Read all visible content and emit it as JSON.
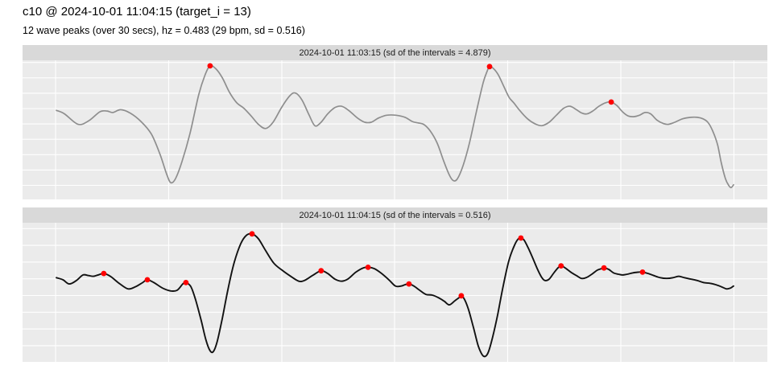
{
  "header": {
    "title": "c10 @ 2024-10-01 11:04:15 (target_i = 13)",
    "subtitle": "12 wave peaks (over 30 secs), hz = 0.483 (29 bpm, sd = 0.516)"
  },
  "colors": {
    "strip_background": "#d9d9d9",
    "panel_background": "#ebebeb",
    "gridline": "#ffffff",
    "peak_marker": "#ff0000",
    "title_text": "#000000",
    "strip_text": "#1a1a1a"
  },
  "chart_data": [
    {
      "type": "line",
      "facet_label": "2024-10-01 11:03:15 (sd of the intervals = 4.879)",
      "line_color": "#8e8e8e",
      "x_range_sec": [
        0,
        30
      ],
      "y_units": "arbitrary amplitude (no axis ticks or labels shown)",
      "grid": true,
      "legend": "none",
      "series": [
        {
          "name": "wave 11:03:15",
          "t_sec": [
            0,
            0.36,
            0.96,
            1.43,
            1.93,
            2.25,
            2.5,
            2.85,
            3.28,
            3.75,
            4.21,
            4.6,
            4.89,
            5.07,
            5.28,
            5.56,
            5.92,
            6.31,
            6.6,
            6.81,
            7.06,
            7.35,
            7.67,
            7.99,
            8.31,
            8.63,
            8.95,
            9.27,
            9.6,
            9.99,
            10.34,
            10.59,
            10.88,
            11.2,
            11.45,
            11.7,
            12.02,
            12.34,
            12.63,
            12.95,
            13.34,
            13.66,
            13.95,
            14.27,
            14.63,
            15.05,
            15.45,
            15.77,
            16.02,
            16.27,
            16.55,
            16.87,
            17.16,
            17.41,
            17.59,
            17.77,
            18.02,
            18.3,
            18.62,
            18.91,
            19.08,
            19.19,
            19.37,
            19.58,
            19.83,
            20.05,
            20.26,
            20.55,
            20.87,
            21.19,
            21.51,
            21.83,
            22.15,
            22.47,
            22.76,
            23.04,
            23.29,
            23.51,
            23.76,
            24.04,
            24.33,
            24.58,
            24.83,
            25.08,
            25.33,
            25.58,
            25.83,
            26.08,
            26.33,
            26.61,
            26.9,
            27.11,
            27.4,
            27.75,
            28.11,
            28.39,
            28.64,
            28.86,
            29.07,
            29.29,
            29.46,
            29.64,
            29.79,
            29.89,
            30
          ],
          "y": [
            0.28,
            0.23,
            0.08,
            0.13,
            0.26,
            0.27,
            0.25,
            0.29,
            0.24,
            0.12,
            -0.06,
            -0.36,
            -0.64,
            -0.76,
            -0.7,
            -0.46,
            -0.05,
            0.51,
            0.8,
            0.92,
            0.88,
            0.75,
            0.54,
            0.39,
            0.31,
            0.2,
            0.08,
            0.02,
            0.11,
            0.33,
            0.49,
            0.53,
            0.43,
            0.21,
            0.06,
            0.1,
            0.23,
            0.32,
            0.34,
            0.28,
            0.17,
            0.11,
            0.11,
            0.17,
            0.21,
            0.21,
            0.18,
            0.12,
            0.1,
            0.08,
            -0.01,
            -0.19,
            -0.45,
            -0.65,
            -0.73,
            -0.7,
            -0.51,
            -0.19,
            0.28,
            0.68,
            0.84,
            0.91,
            0.88,
            0.79,
            0.62,
            0.47,
            0.39,
            0.27,
            0.16,
            0.09,
            0.06,
            0.11,
            0.21,
            0.31,
            0.34,
            0.29,
            0.24,
            0.23,
            0.27,
            0.34,
            0.39,
            0.4,
            0.35,
            0.26,
            0.2,
            0.19,
            0.21,
            0.25,
            0.23,
            0.14,
            0.09,
            0.08,
            0.11,
            0.16,
            0.18,
            0.18,
            0.16,
            0.11,
            -0.01,
            -0.21,
            -0.48,
            -0.7,
            -0.8,
            -0.83,
            -0.79
          ]
        }
      ],
      "peaks": {
        "marker": "red dot",
        "t_sec": [
          6.81,
          19.19,
          24.58
        ],
        "y": [
          0.92,
          0.91,
          0.4
        ]
      }
    },
    {
      "type": "line",
      "facet_label": "2024-10-01 11:04:15 (sd of the intervals = 0.516)",
      "line_color": "#121212",
      "x_range_sec": [
        0,
        30
      ],
      "y_units": "arbitrary amplitude (no axis ticks or labels shown)",
      "grid": true,
      "legend": "none",
      "series": [
        {
          "name": "wave 11:04:15",
          "t_sec": [
            0,
            0.29,
            0.57,
            0.89,
            1.18,
            1.43,
            1.64,
            1.85,
            2.1,
            2.39,
            2.78,
            3.17,
            3.5,
            3.82,
            4.03,
            4.32,
            4.71,
            5.07,
            5.35,
            5.6,
            5.74,
            5.96,
            6.17,
            6.42,
            6.63,
            6.81,
            6.96,
            7.13,
            7.35,
            7.6,
            7.88,
            8.17,
            8.42,
            8.67,
            8.95,
            9.27,
            9.63,
            9.99,
            10.38,
            10.74,
            10.99,
            11.34,
            11.73,
            12.02,
            12.34,
            12.63,
            12.91,
            13.27,
            13.59,
            13.81,
            14.09,
            14.41,
            14.73,
            15.02,
            15.27,
            15.45,
            15.62,
            15.84,
            16.09,
            16.37,
            16.66,
            16.94,
            17.19,
            17.41,
            17.66,
            17.83,
            17.94,
            18.08,
            18.26,
            18.48,
            18.69,
            18.87,
            19.01,
            19.15,
            19.33,
            19.55,
            19.8,
            20.05,
            20.3,
            20.47,
            20.58,
            20.72,
            20.9,
            21.12,
            21.33,
            21.51,
            21.65,
            21.83,
            22.04,
            22.22,
            22.36,
            22.54,
            22.79,
            23.04,
            23.26,
            23.47,
            23.72,
            23.97,
            24.15,
            24.26,
            24.47,
            24.68,
            24.9,
            25.08,
            25.29,
            25.54,
            25.79,
            25.97,
            26.22,
            26.47,
            26.75,
            27.04,
            27.32,
            27.57,
            27.82,
            28.11,
            28.39,
            28.68,
            28.96,
            29.21,
            29.46,
            29.68,
            29.86,
            30
          ],
          "y": [
            0.21,
            0.18,
            0.12,
            0.17,
            0.25,
            0.24,
            0.23,
            0.25,
            0.27,
            0.23,
            0.13,
            0.05,
            0.08,
            0.14,
            0.18,
            0.14,
            0.06,
            0.02,
            0.03,
            0.12,
            0.14,
            0.08,
            -0.11,
            -0.41,
            -0.69,
            -0.84,
            -0.85,
            -0.7,
            -0.38,
            0.04,
            0.43,
            0.7,
            0.82,
            0.84,
            0.77,
            0.6,
            0.42,
            0.32,
            0.23,
            0.16,
            0.17,
            0.24,
            0.31,
            0.27,
            0.19,
            0.16,
            0.19,
            0.29,
            0.35,
            0.36,
            0.34,
            0.27,
            0.18,
            0.09,
            0.09,
            0.11,
            0.12,
            0.09,
            0.03,
            -0.03,
            -0.04,
            -0.08,
            -0.13,
            -0.18,
            -0.12,
            -0.08,
            -0.05,
            -0.1,
            -0.25,
            -0.51,
            -0.77,
            -0.9,
            -0.92,
            -0.85,
            -0.64,
            -0.32,
            0.1,
            0.46,
            0.68,
            0.77,
            0.78,
            0.75,
            0.64,
            0.48,
            0.32,
            0.21,
            0.17,
            0.19,
            0.28,
            0.35,
            0.38,
            0.35,
            0.29,
            0.24,
            0.2,
            0.21,
            0.26,
            0.32,
            0.34,
            0.35,
            0.33,
            0.28,
            0.26,
            0.25,
            0.26,
            0.28,
            0.29,
            0.29,
            0.27,
            0.24,
            0.21,
            0.2,
            0.21,
            0.23,
            0.21,
            0.19,
            0.17,
            0.14,
            0.13,
            0.11,
            0.08,
            0.05,
            0.06,
            0.09
          ]
        }
      ],
      "peaks": {
        "marker": "red dot",
        "t_sec": [
          2.1,
          4.03,
          5.74,
          8.67,
          11.73,
          13.81,
          15.62,
          17.94,
          20.58,
          22.36,
          24.26,
          25.97
        ],
        "y": [
          0.27,
          0.18,
          0.14,
          0.84,
          0.31,
          0.36,
          0.12,
          -0.05,
          0.78,
          0.38,
          0.35,
          0.29
        ]
      }
    }
  ]
}
